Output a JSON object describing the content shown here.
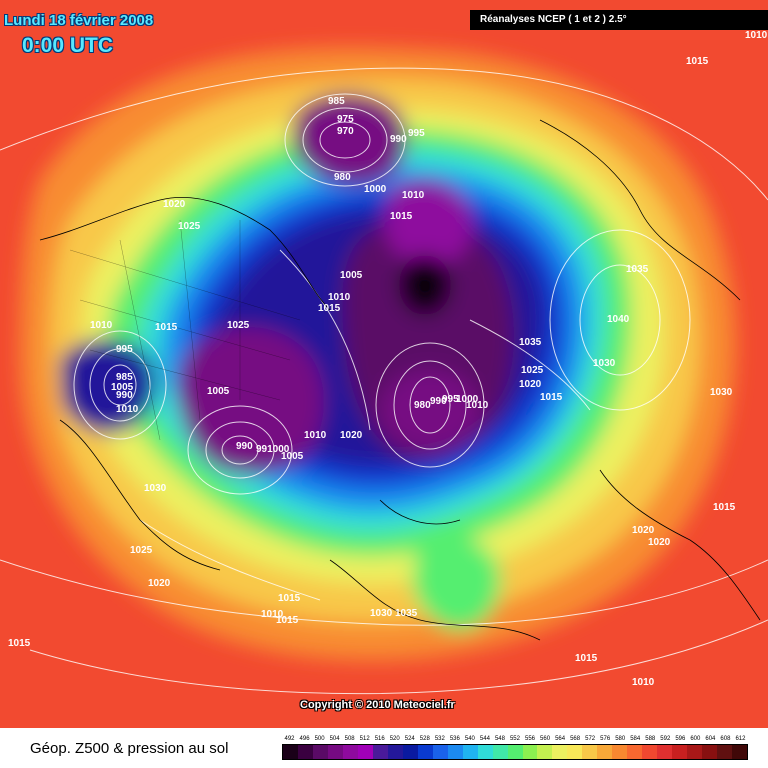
{
  "header": {
    "date": "Lundi 18 février 2008",
    "time": "0:00 UTC",
    "source": "Réanalyses NCEP ( 1 et 2 ) 2.5°"
  },
  "footer": {
    "title": "Géop. Z500 & pression au sol",
    "copyright": "Copyright © 2010 Meteociel.fr"
  },
  "legend": {
    "levels": [
      "492",
      "496",
      "500",
      "504",
      "508",
      "512",
      "516",
      "520",
      "524",
      "528",
      "532",
      "536",
      "540",
      "544",
      "548",
      "552",
      "556",
      "560",
      "564",
      "568",
      "572",
      "576",
      "580",
      "584",
      "588",
      "592",
      "596",
      "600",
      "604",
      "608",
      "612"
    ],
    "colors": [
      "#1a0018",
      "#3a0040",
      "#5a0a66",
      "#760a82",
      "#8e0a9e",
      "#a000b8",
      "#4a1a9a",
      "#24189a",
      "#0a1aa0",
      "#0a3ad0",
      "#1a62ea",
      "#1c8af0",
      "#20b4f0",
      "#30dcd8",
      "#40e8a8",
      "#54ee70",
      "#8cf050",
      "#c4f050",
      "#ecf060",
      "#f8e858",
      "#f8c848",
      "#f8a838",
      "#f88830",
      "#f86830",
      "#f04830",
      "#e03030",
      "#c82020",
      "#a81818",
      "#881010",
      "#601010",
      "#400808"
    ]
  },
  "pressure_labels": [
    {
      "text": "1010"
    },
    {
      "text": "1015"
    },
    {
      "text": "985"
    },
    {
      "text": "975"
    },
    {
      "text": "970"
    },
    {
      "text": "990"
    },
    {
      "text": "995"
    },
    {
      "text": "980"
    },
    {
      "text": "1000"
    },
    {
      "text": "1010"
    },
    {
      "text": "1015"
    },
    {
      "text": "1020"
    },
    {
      "text": "1025"
    },
    {
      "text": "1035"
    },
    {
      "text": "1005"
    },
    {
      "text": "1010"
    },
    {
      "text": "1015"
    },
    {
      "text": "1040"
    },
    {
      "text": "1035"
    },
    {
      "text": "1030"
    },
    {
      "text": "1010"
    },
    {
      "text": "1015"
    },
    {
      "text": "1025"
    },
    {
      "text": "995"
    },
    {
      "text": "985"
    },
    {
      "text": "990"
    },
    {
      "text": "1005"
    },
    {
      "text": "1010"
    },
    {
      "text": "1025"
    },
    {
      "text": "1020"
    },
    {
      "text": "1015"
    },
    {
      "text": "1030"
    },
    {
      "text": "980"
    },
    {
      "text": "990"
    },
    {
      "text": "995"
    },
    {
      "text": "1000"
    },
    {
      "text": "1005"
    },
    {
      "text": "1010"
    },
    {
      "text": "1020"
    },
    {
      "text": "1030"
    },
    {
      "text": "990"
    },
    {
      "text": "991000"
    },
    {
      "text": "1005"
    },
    {
      "text": "1025"
    },
    {
      "text": "1020"
    },
    {
      "text": "1015"
    },
    {
      "text": "1010"
    },
    {
      "text": "1015"
    },
    {
      "text": "1030"
    },
    {
      "text": "1035"
    },
    {
      "text": "1015"
    },
    {
      "text": "1020"
    },
    {
      "text": "1020"
    },
    {
      "text": "1015"
    },
    {
      "text": "1015"
    },
    {
      "text": "1010"
    },
    {
      "text": "1010"
    }
  ]
}
